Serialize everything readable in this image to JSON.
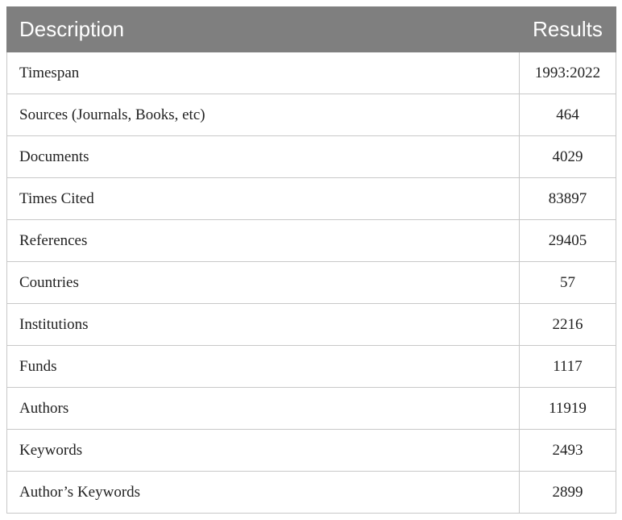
{
  "table": {
    "headers": {
      "description": "Description",
      "results": "Results"
    },
    "rows": [
      {
        "description": "Timespan",
        "result": "1993:2022"
      },
      {
        "description": "Sources (Journals, Books, etc)",
        "result": "464"
      },
      {
        "description": "Documents",
        "result": "4029"
      },
      {
        "description": "Times Cited",
        "result": "83897"
      },
      {
        "description": "References",
        "result": "29405"
      },
      {
        "description": "Countries",
        "result": "57"
      },
      {
        "description": "Institutions",
        "result": "2216"
      },
      {
        "description": "Funds",
        "result": "1117"
      },
      {
        "description": "Authors",
        "result": "11919"
      },
      {
        "description": "Keywords",
        "result": "2493"
      },
      {
        "description": "Author’s Keywords",
        "result": "2899"
      }
    ]
  }
}
